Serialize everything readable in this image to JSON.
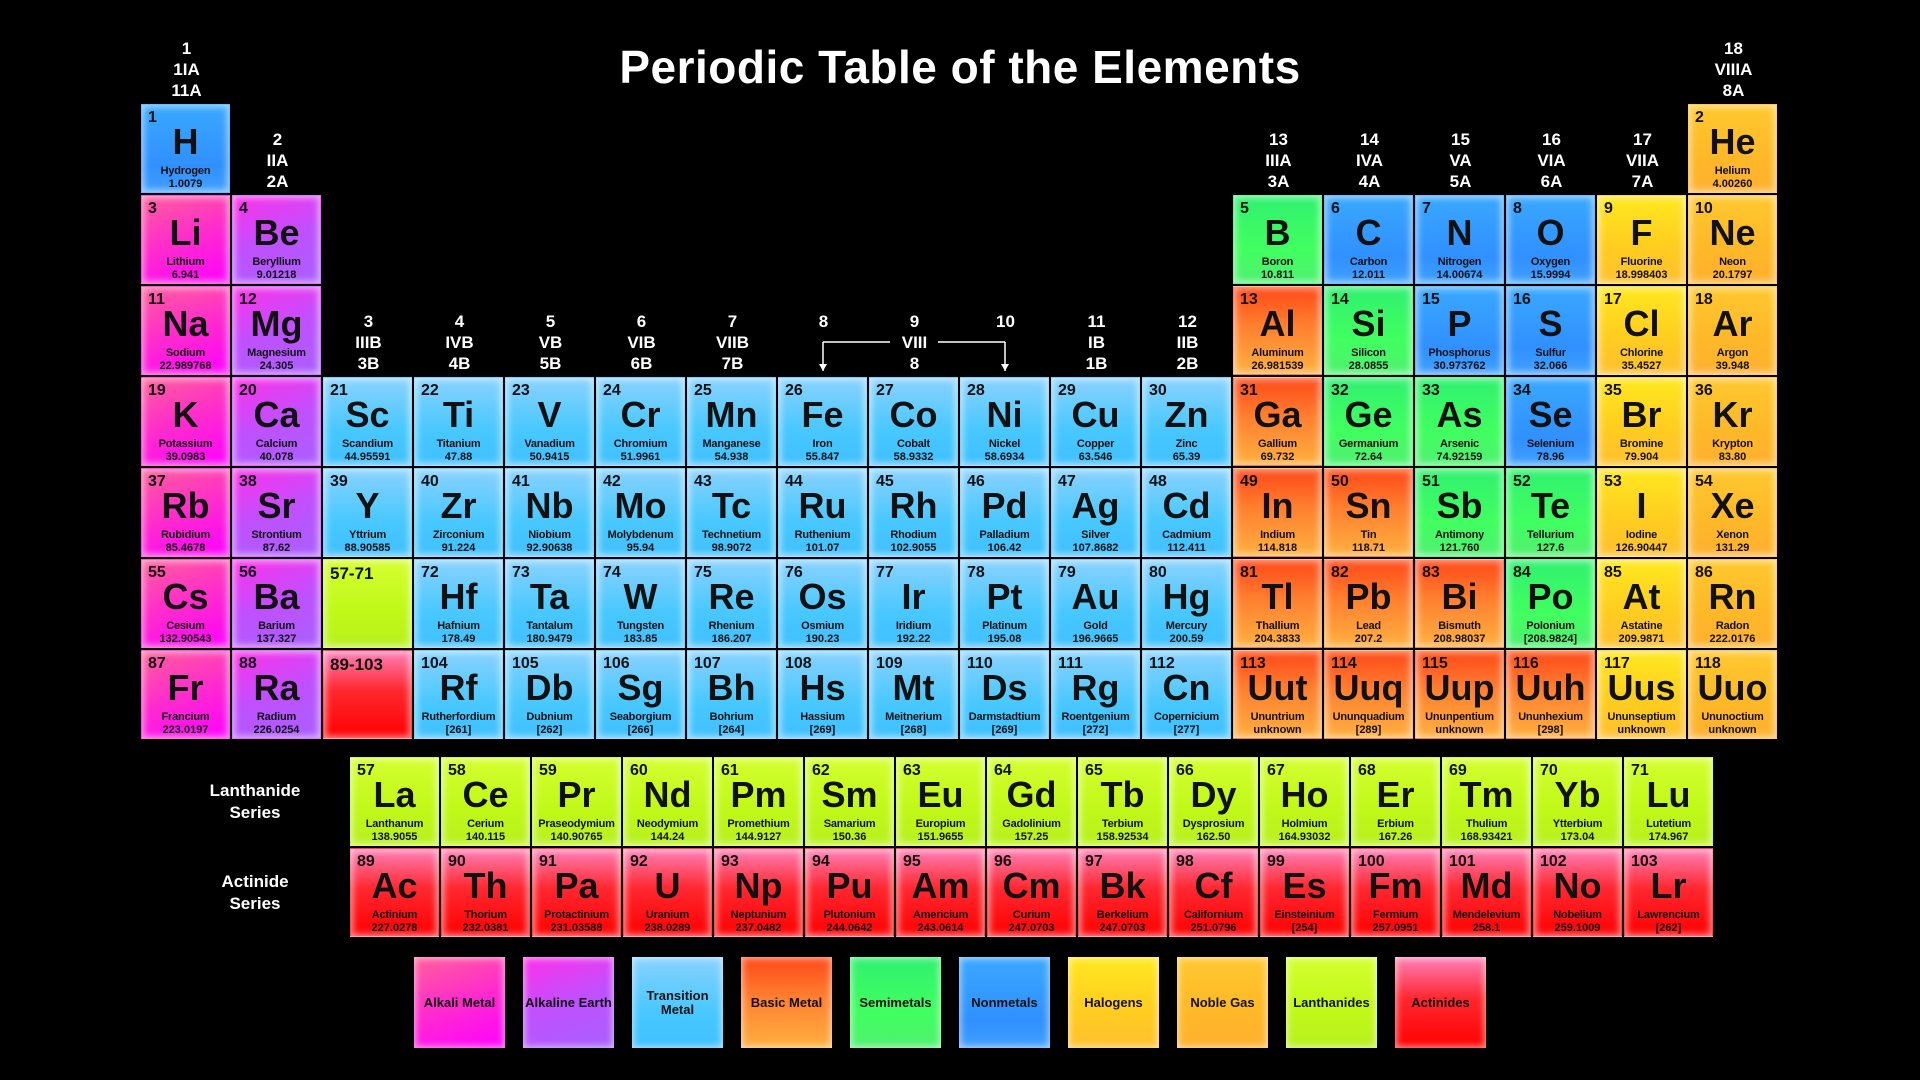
{
  "title": "Periodic Table of the Elements",
  "group_headers": [
    {
      "group": 1,
      "lines": [
        "1",
        "1IA",
        "11A"
      ]
    },
    {
      "group": 2,
      "lines": [
        "2",
        "IIA",
        "2A"
      ]
    },
    {
      "group": 3,
      "lines": [
        "3",
        "IIIB",
        "3B"
      ]
    },
    {
      "group": 4,
      "lines": [
        "4",
        "IVB",
        "4B"
      ]
    },
    {
      "group": 5,
      "lines": [
        "5",
        "VB",
        "5B"
      ]
    },
    {
      "group": 6,
      "lines": [
        "6",
        "VIB",
        "6B"
      ]
    },
    {
      "group": 7,
      "lines": [
        "7",
        "VIIB",
        "7B"
      ]
    },
    {
      "group": 8,
      "lines": [
        "8"
      ]
    },
    {
      "group": 9,
      "lines": [
        "9",
        "VIII",
        "8"
      ]
    },
    {
      "group": 10,
      "lines": [
        "10"
      ]
    },
    {
      "group": 11,
      "lines": [
        "11",
        "IB",
        "1B"
      ]
    },
    {
      "group": 12,
      "lines": [
        "12",
        "IIB",
        "2B"
      ]
    },
    {
      "group": 13,
      "lines": [
        "13",
        "IIIA",
        "3A"
      ]
    },
    {
      "group": 14,
      "lines": [
        "14",
        "IVA",
        "4A"
      ]
    },
    {
      "group": 15,
      "lines": [
        "15",
        "VA",
        "5A"
      ]
    },
    {
      "group": 16,
      "lines": [
        "16",
        "VIA",
        "6A"
      ]
    },
    {
      "group": 17,
      "lines": [
        "17",
        "VIIA",
        "7A"
      ]
    },
    {
      "group": 18,
      "lines": [
        "18",
        "VIIIA",
        "8A"
      ]
    }
  ],
  "placeholders": {
    "lanthanide_range": "57-71",
    "actinide_range": "89-103"
  },
  "series_labels": {
    "lanthanide": [
      "Lanthanide",
      "Series"
    ],
    "actinide": [
      "Actinide",
      "Series"
    ]
  },
  "legend": [
    {
      "key": "alkali",
      "label": "Alkali Metal",
      "color": "#ff30c8"
    },
    {
      "key": "alkaline",
      "label": "Alkaline Earth",
      "color": "#b050ff"
    },
    {
      "key": "transition",
      "label": "Transition Metal",
      "color": "#48c8ff"
    },
    {
      "key": "basic",
      "label": "Basic Metal",
      "color": "#ff7a2a"
    },
    {
      "key": "semimetal",
      "label": "Semimetals",
      "color": "#40ff60"
    },
    {
      "key": "nonmetal",
      "label": "Nonmetals",
      "color": "#3098ff"
    },
    {
      "key": "halogen",
      "label": "Halogens",
      "color": "#ffd020"
    },
    {
      "key": "noble",
      "label": "Noble Gas",
      "color": "#ffb828"
    },
    {
      "key": "lanthanide",
      "label": "Lanthanides",
      "color": "#c4f81c"
    },
    {
      "key": "actinide",
      "label": "Actinides",
      "color": "#ff1010"
    }
  ],
  "elements": [
    {
      "number": "1",
      "symbol": "H",
      "name": "Hydrogen",
      "mass": "1.0079",
      "category": "nonmetal"
    },
    {
      "number": "2",
      "symbol": "He",
      "name": "Helium",
      "mass": "4.00260",
      "category": "noble"
    },
    {
      "number": "3",
      "symbol": "Li",
      "name": "Lithium",
      "mass": "6.941",
      "category": "alkali"
    },
    {
      "number": "4",
      "symbol": "Be",
      "name": "Beryllium",
      "mass": "9.01218",
      "category": "alkaline"
    },
    {
      "number": "5",
      "symbol": "B",
      "name": "Boron",
      "mass": "10.811",
      "category": "semimetal"
    },
    {
      "number": "6",
      "symbol": "C",
      "name": "Carbon",
      "mass": "12.011",
      "category": "nonmetal"
    },
    {
      "number": "7",
      "symbol": "N",
      "name": "Nitrogen",
      "mass": "14.00674",
      "category": "nonmetal"
    },
    {
      "number": "8",
      "symbol": "O",
      "name": "Oxygen",
      "mass": "15.9994",
      "category": "nonmetal"
    },
    {
      "number": "9",
      "symbol": "F",
      "name": "Fluorine",
      "mass": "18.998403",
      "category": "halogen"
    },
    {
      "number": "10",
      "symbol": "Ne",
      "name": "Neon",
      "mass": "20.1797",
      "category": "noble"
    },
    {
      "number": "11",
      "symbol": "Na",
      "name": "Sodium",
      "mass": "22.989768",
      "category": "alkali"
    },
    {
      "number": "12",
      "symbol": "Mg",
      "name": "Magnesium",
      "mass": "24.305",
      "category": "alkaline"
    },
    {
      "number": "13",
      "symbol": "Al",
      "name": "Aluminum",
      "mass": "26.981539",
      "category": "basic"
    },
    {
      "number": "14",
      "symbol": "Si",
      "name": "Silicon",
      "mass": "28.0855",
      "category": "semimetal"
    },
    {
      "number": "15",
      "symbol": "P",
      "name": "Phosphorus",
      "mass": "30.973762",
      "category": "nonmetal"
    },
    {
      "number": "16",
      "symbol": "S",
      "name": "Sulfur",
      "mass": "32.066",
      "category": "nonmetal"
    },
    {
      "number": "17",
      "symbol": "Cl",
      "name": "Chlorine",
      "mass": "35.4527",
      "category": "halogen"
    },
    {
      "number": "18",
      "symbol": "Ar",
      "name": "Argon",
      "mass": "39.948",
      "category": "noble"
    },
    {
      "number": "19",
      "symbol": "K",
      "name": "Potassium",
      "mass": "39.0983",
      "category": "alkali"
    },
    {
      "number": "20",
      "symbol": "Ca",
      "name": "Calcium",
      "mass": "40.078",
      "category": "alkaline"
    },
    {
      "number": "21",
      "symbol": "Sc",
      "name": "Scandium",
      "mass": "44.95591",
      "category": "transition"
    },
    {
      "number": "22",
      "symbol": "Ti",
      "name": "Titanium",
      "mass": "47.88",
      "category": "transition"
    },
    {
      "number": "23",
      "symbol": "V",
      "name": "Vanadium",
      "mass": "50.9415",
      "category": "transition"
    },
    {
      "number": "24",
      "symbol": "Cr",
      "name": "Chromium",
      "mass": "51.9961",
      "category": "transition"
    },
    {
      "number": "25",
      "symbol": "Mn",
      "name": "Manganese",
      "mass": "54.938",
      "category": "transition"
    },
    {
      "number": "26",
      "symbol": "Fe",
      "name": "Iron",
      "mass": "55.847",
      "category": "transition"
    },
    {
      "number": "27",
      "symbol": "Co",
      "name": "Cobalt",
      "mass": "58.9332",
      "category": "transition"
    },
    {
      "number": "28",
      "symbol": "Ni",
      "name": "Nickel",
      "mass": "58.6934",
      "category": "transition"
    },
    {
      "number": "29",
      "symbol": "Cu",
      "name": "Copper",
      "mass": "63.546",
      "category": "transition"
    },
    {
      "number": "30",
      "symbol": "Zn",
      "name": "Zinc",
      "mass": "65.39",
      "category": "transition"
    },
    {
      "number": "31",
      "symbol": "Ga",
      "name": "Gallium",
      "mass": "69.732",
      "category": "basic"
    },
    {
      "number": "32",
      "symbol": "Ge",
      "name": "Germanium",
      "mass": "72.64",
      "category": "semimetal"
    },
    {
      "number": "33",
      "symbol": "As",
      "name": "Arsenic",
      "mass": "74.92159",
      "category": "semimetal"
    },
    {
      "number": "34",
      "symbol": "Se",
      "name": "Selenium",
      "mass": "78.96",
      "category": "nonmetal"
    },
    {
      "number": "35",
      "symbol": "Br",
      "name": "Bromine",
      "mass": "79.904",
      "category": "halogen"
    },
    {
      "number": "36",
      "symbol": "Kr",
      "name": "Krypton",
      "mass": "83.80",
      "category": "noble"
    },
    {
      "number": "37",
      "symbol": "Rb",
      "name": "Rubidium",
      "mass": "85.4678",
      "category": "alkali"
    },
    {
      "number": "38",
      "symbol": "Sr",
      "name": "Strontium",
      "mass": "87.62",
      "category": "alkaline"
    },
    {
      "number": "39",
      "symbol": "Y",
      "name": "Yttrium",
      "mass": "88.90585",
      "category": "transition"
    },
    {
      "number": "40",
      "symbol": "Zr",
      "name": "Zirconium",
      "mass": "91.224",
      "category": "transition"
    },
    {
      "number": "41",
      "symbol": "Nb",
      "name": "Niobium",
      "mass": "92.90638",
      "category": "transition"
    },
    {
      "number": "42",
      "symbol": "Mo",
      "name": "Molybdenum",
      "mass": "95.94",
      "category": "transition"
    },
    {
      "number": "43",
      "symbol": "Tc",
      "name": "Technetium",
      "mass": "98.9072",
      "category": "transition"
    },
    {
      "number": "44",
      "symbol": "Ru",
      "name": "Ruthenium",
      "mass": "101.07",
      "category": "transition"
    },
    {
      "number": "45",
      "symbol": "Rh",
      "name": "Rhodium",
      "mass": "102.9055",
      "category": "transition"
    },
    {
      "number": "46",
      "symbol": "Pd",
      "name": "Palladium",
      "mass": "106.42",
      "category": "transition"
    },
    {
      "number": "47",
      "symbol": "Ag",
      "name": "Silver",
      "mass": "107.8682",
      "category": "transition"
    },
    {
      "number": "48",
      "symbol": "Cd",
      "name": "Cadmium",
      "mass": "112.411",
      "category": "transition"
    },
    {
      "number": "49",
      "symbol": "In",
      "name": "Indium",
      "mass": "114.818",
      "category": "basic"
    },
    {
      "number": "50",
      "symbol": "Sn",
      "name": "Tin",
      "mass": "118.71",
      "category": "basic"
    },
    {
      "number": "51",
      "symbol": "Sb",
      "name": "Antimony",
      "mass": "121.760",
      "category": "semimetal"
    },
    {
      "number": "52",
      "symbol": "Te",
      "name": "Tellurium",
      "mass": "127.6",
      "category": "semimetal"
    },
    {
      "number": "53",
      "symbol": "I",
      "name": "Iodine",
      "mass": "126.90447",
      "category": "halogen"
    },
    {
      "number": "54",
      "symbol": "Xe",
      "name": "Xenon",
      "mass": "131.29",
      "category": "noble"
    },
    {
      "number": "55",
      "symbol": "Cs",
      "name": "Cesium",
      "mass": "132.90543",
      "category": "alkali"
    },
    {
      "number": "56",
      "symbol": "Ba",
      "name": "Barium",
      "mass": "137.327",
      "category": "alkaline"
    },
    {
      "number": "57",
      "symbol": "La",
      "name": "Lanthanum",
      "mass": "138.9055",
      "category": "lanthanide"
    },
    {
      "number": "58",
      "symbol": "Ce",
      "name": "Cerium",
      "mass": "140.115",
      "category": "lanthanide"
    },
    {
      "number": "59",
      "symbol": "Pr",
      "name": "Praseodymium",
      "mass": "140.90765",
      "category": "lanthanide"
    },
    {
      "number": "60",
      "symbol": "Nd",
      "name": "Neodymium",
      "mass": "144.24",
      "category": "lanthanide"
    },
    {
      "number": "61",
      "symbol": "Pm",
      "name": "Promethium",
      "mass": "144.9127",
      "category": "lanthanide"
    },
    {
      "number": "62",
      "symbol": "Sm",
      "name": "Samarium",
      "mass": "150.36",
      "category": "lanthanide"
    },
    {
      "number": "63",
      "symbol": "Eu",
      "name": "Europium",
      "mass": "151.9655",
      "category": "lanthanide"
    },
    {
      "number": "64",
      "symbol": "Gd",
      "name": "Gadolinium",
      "mass": "157.25",
      "category": "lanthanide"
    },
    {
      "number": "65",
      "symbol": "Tb",
      "name": "Terbium",
      "mass": "158.92534",
      "category": "lanthanide"
    },
    {
      "number": "66",
      "symbol": "Dy",
      "name": "Dysprosium",
      "mass": "162.50",
      "category": "lanthanide"
    },
    {
      "number": "67",
      "symbol": "Ho",
      "name": "Holmium",
      "mass": "164.93032",
      "category": "lanthanide"
    },
    {
      "number": "68",
      "symbol": "Er",
      "name": "Erbium",
      "mass": "167.26",
      "category": "lanthanide"
    },
    {
      "number": "69",
      "symbol": "Tm",
      "name": "Thulium",
      "mass": "168.93421",
      "category": "lanthanide"
    },
    {
      "number": "70",
      "symbol": "Yb",
      "name": "Ytterbium",
      "mass": "173.04",
      "category": "lanthanide"
    },
    {
      "number": "71",
      "symbol": "Lu",
      "name": "Lutetium",
      "mass": "174.967",
      "category": "lanthanide"
    },
    {
      "number": "72",
      "symbol": "Hf",
      "name": "Hafnium",
      "mass": "178.49",
      "category": "transition"
    },
    {
      "number": "73",
      "symbol": "Ta",
      "name": "Tantalum",
      "mass": "180.9479",
      "category": "transition"
    },
    {
      "number": "74",
      "symbol": "W",
      "name": "Tungsten",
      "mass": "183.85",
      "category": "transition"
    },
    {
      "number": "75",
      "symbol": "Re",
      "name": "Rhenium",
      "mass": "186.207",
      "category": "transition"
    },
    {
      "number": "76",
      "symbol": "Os",
      "name": "Osmium",
      "mass": "190.23",
      "category": "transition"
    },
    {
      "number": "77",
      "symbol": "Ir",
      "name": "Iridium",
      "mass": "192.22",
      "category": "transition"
    },
    {
      "number": "78",
      "symbol": "Pt",
      "name": "Platinum",
      "mass": "195.08",
      "category": "transition"
    },
    {
      "number": "79",
      "symbol": "Au",
      "name": "Gold",
      "mass": "196.9665",
      "category": "transition"
    },
    {
      "number": "80",
      "symbol": "Hg",
      "name": "Mercury",
      "mass": "200.59",
      "category": "transition"
    },
    {
      "number": "81",
      "symbol": "Tl",
      "name": "Thallium",
      "mass": "204.3833",
      "category": "basic"
    },
    {
      "number": "82",
      "symbol": "Pb",
      "name": "Lead",
      "mass": "207.2",
      "category": "basic"
    },
    {
      "number": "83",
      "symbol": "Bi",
      "name": "Bismuth",
      "mass": "208.98037",
      "category": "basic"
    },
    {
      "number": "84",
      "symbol": "Po",
      "name": "Polonium",
      "mass": "[208.9824]",
      "category": "semimetal"
    },
    {
      "number": "85",
      "symbol": "At",
      "name": "Astatine",
      "mass": "209.9871",
      "category": "halogen"
    },
    {
      "number": "86",
      "symbol": "Rn",
      "name": "Radon",
      "mass": "222.0176",
      "category": "noble"
    },
    {
      "number": "87",
      "symbol": "Fr",
      "name": "Francium",
      "mass": "223.0197",
      "category": "alkali"
    },
    {
      "number": "88",
      "symbol": "Ra",
      "name": "Radium",
      "mass": "226.0254",
      "category": "alkaline"
    },
    {
      "number": "89",
      "symbol": "Ac",
      "name": "Actinium",
      "mass": "227.0278",
      "category": "actinide"
    },
    {
      "number": "90",
      "symbol": "Th",
      "name": "Thorium",
      "mass": "232.0381",
      "category": "actinide"
    },
    {
      "number": "91",
      "symbol": "Pa",
      "name": "Protactinium",
      "mass": "231.03588",
      "category": "actinide"
    },
    {
      "number": "92",
      "symbol": "U",
      "name": "Uranium",
      "mass": "238.0289",
      "category": "actinide"
    },
    {
      "number": "93",
      "symbol": "Np",
      "name": "Neptunium",
      "mass": "237.0482",
      "category": "actinide"
    },
    {
      "number": "94",
      "symbol": "Pu",
      "name": "Plutonium",
      "mass": "244.0642",
      "category": "actinide"
    },
    {
      "number": "95",
      "symbol": "Am",
      "name": "Americium",
      "mass": "243.0614",
      "category": "actinide"
    },
    {
      "number": "96",
      "symbol": "Cm",
      "name": "Curium",
      "mass": "247.0703",
      "category": "actinide"
    },
    {
      "number": "97",
      "symbol": "Bk",
      "name": "Berkelium",
      "mass": "247.0703",
      "category": "actinide"
    },
    {
      "number": "98",
      "symbol": "Cf",
      "name": "Californium",
      "mass": "251.0796",
      "category": "actinide"
    },
    {
      "number": "99",
      "symbol": "Es",
      "name": "Einsteinium",
      "mass": "[254]",
      "category": "actinide"
    },
    {
      "number": "100",
      "symbol": "Fm",
      "name": "Fermium",
      "mass": "257.0951",
      "category": "actinide"
    },
    {
      "number": "101",
      "symbol": "Md",
      "name": "Mendelevium",
      "mass": "258.1",
      "category": "actinide"
    },
    {
      "number": "102",
      "symbol": "No",
      "name": "Nobelium",
      "mass": "259.1009",
      "category": "actinide"
    },
    {
      "number": "103",
      "symbol": "Lr",
      "name": "Lawrencium",
      "mass": "[262]",
      "category": "actinide"
    },
    {
      "number": "104",
      "symbol": "Rf",
      "name": "Rutherfordium",
      "mass": "[261]",
      "category": "transition"
    },
    {
      "number": "105",
      "symbol": "Db",
      "name": "Dubnium",
      "mass": "[262]",
      "category": "transition"
    },
    {
      "number": "106",
      "symbol": "Sg",
      "name": "Seaborgium",
      "mass": "[266]",
      "category": "transition"
    },
    {
      "number": "107",
      "symbol": "Bh",
      "name": "Bohrium",
      "mass": "[264]",
      "category": "transition"
    },
    {
      "number": "108",
      "symbol": "Hs",
      "name": "Hassium",
      "mass": "[269]",
      "category": "transition"
    },
    {
      "number": "109",
      "symbol": "Mt",
      "name": "Meitnerium",
      "mass": "[268]",
      "category": "transition"
    },
    {
      "number": "110",
      "symbol": "Ds",
      "name": "Darmstadtium",
      "mass": "[269]",
      "category": "transition"
    },
    {
      "number": "111",
      "symbol": "Rg",
      "name": "Roentgenium",
      "mass": "[272]",
      "category": "transition"
    },
    {
      "number": "112",
      "symbol": "Cn",
      "name": "Copernicium",
      "mass": "[277]",
      "category": "transition"
    },
    {
      "number": "113",
      "symbol": "Uut",
      "name": "Ununtrium",
      "mass": "unknown",
      "category": "basic"
    },
    {
      "number": "114",
      "symbol": "Uuq",
      "name": "Ununquadium",
      "mass": "[289]",
      "category": "basic"
    },
    {
      "number": "115",
      "symbol": "Uup",
      "name": "Ununpentium",
      "mass": "unknown",
      "category": "basic"
    },
    {
      "number": "116",
      "symbol": "Uuh",
      "name": "Ununhexium",
      "mass": "[298]",
      "category": "basic"
    },
    {
      "number": "117",
      "symbol": "Uus",
      "name": "Ununseptium",
      "mass": "unknown",
      "category": "halogen"
    },
    {
      "number": "118",
      "symbol": "Uuo",
      "name": "Ununoctium",
      "mass": "unknown",
      "category": "noble"
    }
  ]
}
